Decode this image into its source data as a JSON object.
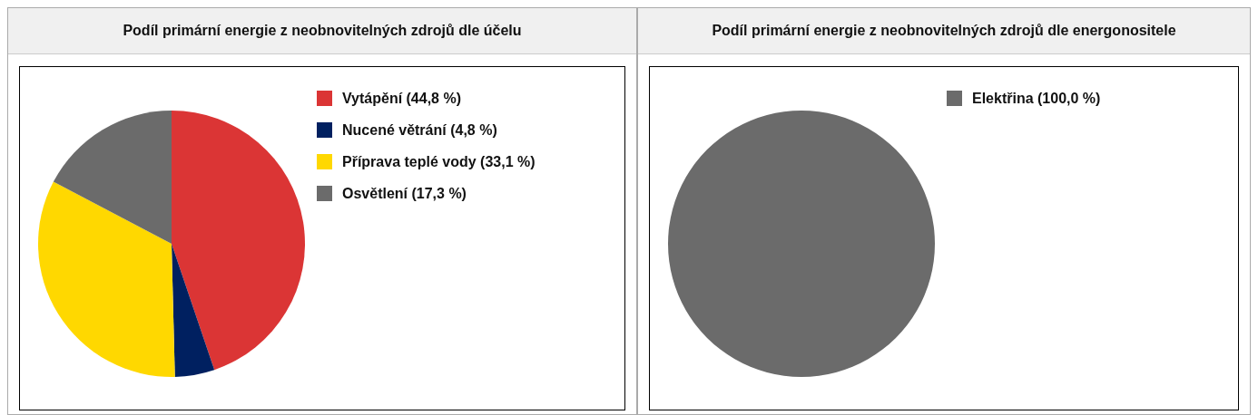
{
  "chart_data": [
    {
      "type": "pie",
      "title": "Podíl primární energie z neobnovitelných zdrojů dle účelu",
      "categories": [
        "Vytápění (44,8 %)",
        "Nucené větrání (4,8 %)",
        "Příprava teplé vody (33,1 %)",
        "Osvětlení (17,3 %)"
      ],
      "values": [
        44.8,
        4.8,
        33.1,
        17.3
      ],
      "colors": [
        "#db3535",
        "#002060",
        "#ffd800",
        "#6b6b6b"
      ],
      "legend": "right"
    },
    {
      "type": "pie",
      "title": "Podíl primární energie z neobnovitelných zdrojů dle energonositele",
      "categories": [
        "Elektřina (100,0 %)"
      ],
      "values": [
        100
      ],
      "colors": [
        "#6b6b6b"
      ],
      "legend": "right"
    }
  ]
}
